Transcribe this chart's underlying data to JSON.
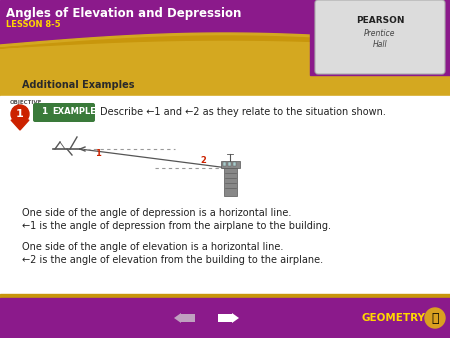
{
  "title": "Angles of Elevation and Depression",
  "lesson": "LESSON 8-5",
  "section": "Additional Examples",
  "purple": "#8B1A8B",
  "gold": "#C8960C",
  "gold2": "#D4A820",
  "white": "#FFFFFF",
  "gray_text": "#333333",
  "red_obj": "#CC2200",
  "green_ex": "#3A7A3A",
  "example_label": "EXAMPLE",
  "prompt": "Describe ←1 and ←2 as they relate to the situation shown.",
  "line1": "One side of the angle of depression is a horizontal line.",
  "line2": "←1 is the angle of depression from the airplane to the building.",
  "line3": "One side of the angle of elevation is a horizontal line.",
  "line4": "←2 is the angle of elevation from the building to the airplane.",
  "geometry_text": "GEOMETRY",
  "angle_label1": "1",
  "angle_label2": "2",
  "fig_w": 4.5,
  "fig_h": 3.38,
  "dpi": 100
}
